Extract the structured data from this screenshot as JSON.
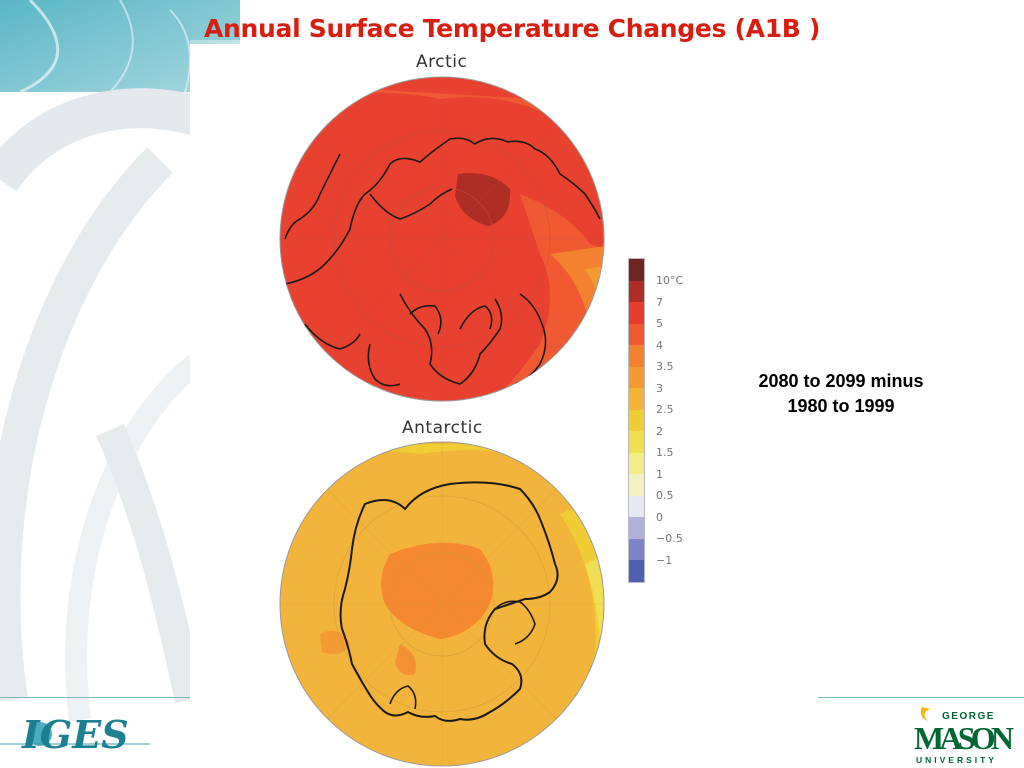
{
  "slide": {
    "title": "Annual Surface Temperature Changes (A1B )",
    "period_line1": "2080 to 2099 minus",
    "period_line2": "1980 to 1999"
  },
  "maps": {
    "arctic_label": "Arctic",
    "antarctic_label": "Antarctic"
  },
  "legend": {
    "labels": [
      "10°C",
      "7",
      "5",
      "4",
      "3.5",
      "3",
      "2.5",
      "2",
      "1.5",
      "1",
      "0.5",
      "0",
      "−0.5",
      "−1"
    ],
    "colors": [
      "#6e2420",
      "#ae2e26",
      "#e83b30",
      "#ef5a33",
      "#f3812f",
      "#f39a33",
      "#f3b43b",
      "#f0cc35",
      "#f0de53",
      "#f4ec86",
      "#f3f1c3",
      "#e8e8f3",
      "#b1b1dc",
      "#7d85c6",
      "#4f5fb1"
    ]
  },
  "logos": {
    "iges_text": "IGES",
    "gmu_top": "GEORGE",
    "gmu_main": "MASON",
    "gmu_bottom": "UNIVERSITY"
  },
  "colors": {
    "title": "#d81e10",
    "arctic_fill": "#e8412f",
    "antarctic_fill": "#f3b43b",
    "accent_teal": "#2f9fb0",
    "gmu_green": "#006633",
    "gmu_gold": "#f2b705"
  }
}
